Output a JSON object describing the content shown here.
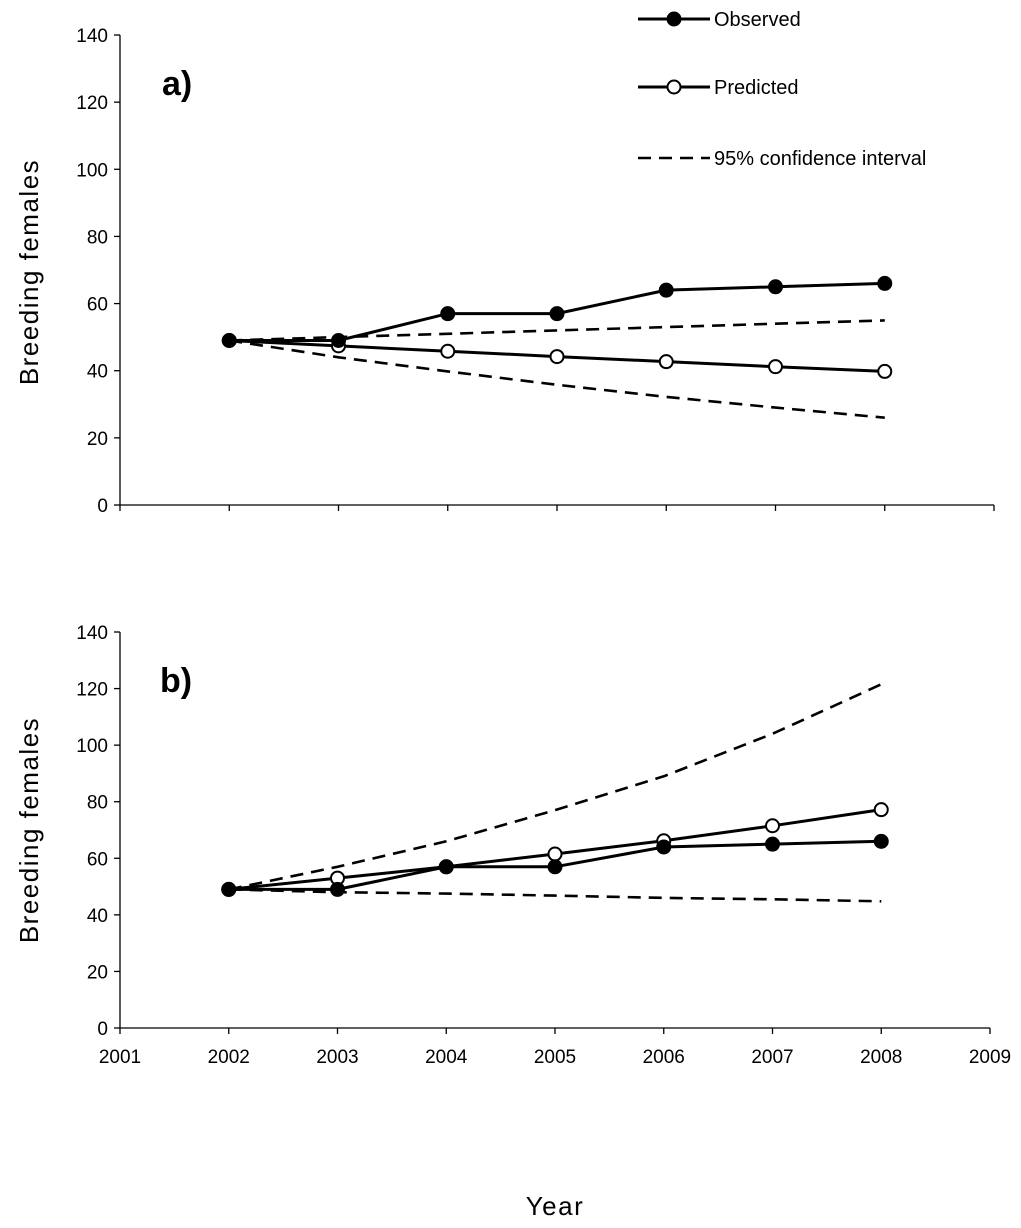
{
  "chart_data": [
    {
      "type": "line",
      "panel_label": "a)",
      "xlabel": "",
      "ylabel": "Breeding females",
      "ylim": [
        0,
        140
      ],
      "yticks": [
        0,
        20,
        40,
        60,
        80,
        100,
        120,
        140
      ],
      "xlim": [
        2001,
        2009
      ],
      "show_x_tick_labels": false,
      "grid": false,
      "legend": {
        "placement": "top-right",
        "entries": [
          "Observed",
          "Predicted",
          "95% confidence interval"
        ]
      },
      "series": [
        {
          "name": "Observed",
          "style": "solid-filled-marker",
          "x": [
            2002,
            2003,
            2004,
            2005,
            2006,
            2007,
            2008
          ],
          "y": [
            49,
            49,
            57,
            57,
            64,
            65,
            66
          ]
        },
        {
          "name": "Predicted",
          "style": "solid-open-marker",
          "x": [
            2002,
            2003,
            2004,
            2005,
            2006,
            2007,
            2008
          ],
          "y": [
            49,
            47.4,
            45.8,
            44.2,
            42.7,
            41.2,
            39.8
          ]
        },
        {
          "name": "95% confidence interval",
          "style": "dashed",
          "x": [
            2002,
            2003,
            2004,
            2005,
            2006,
            2007,
            2008
          ],
          "y": [
            49,
            50,
            51,
            52,
            53,
            54,
            55
          ]
        },
        {
          "name": "95% confidence interval",
          "style": "dashed",
          "x": [
            2002,
            2003,
            2004,
            2005,
            2006,
            2007,
            2008
          ],
          "y": [
            49,
            44,
            39.8,
            35.8,
            32.2,
            29,
            26
          ]
        }
      ]
    },
    {
      "type": "line",
      "panel_label": "b)",
      "xlabel": "Year",
      "ylabel": "Breeding females",
      "ylim": [
        0,
        140
      ],
      "yticks": [
        0,
        20,
        40,
        60,
        80,
        100,
        120,
        140
      ],
      "xlim": [
        2001,
        2009
      ],
      "xticks": [
        "2001",
        "2002",
        "2003",
        "2004",
        "2005",
        "2006",
        "2007",
        "2008",
        "2009"
      ],
      "show_x_tick_labels": true,
      "grid": false,
      "series": [
        {
          "name": "Observed",
          "style": "solid-filled-marker",
          "x": [
            2002,
            2003,
            2004,
            2005,
            2006,
            2007,
            2008
          ],
          "y": [
            49,
            49,
            57,
            57,
            64,
            65,
            66
          ]
        },
        {
          "name": "Predicted",
          "style": "solid-open-marker",
          "x": [
            2002,
            2003,
            2004,
            2005,
            2006,
            2007,
            2008
          ],
          "y": [
            49,
            53,
            57,
            61.5,
            66.2,
            71.5,
            77.2
          ]
        },
        {
          "name": "95% confidence interval",
          "style": "dashed",
          "x": [
            2002,
            2003,
            2004,
            2005,
            2006,
            2007,
            2008
          ],
          "y": [
            49,
            57,
            66,
            77,
            89,
            104,
            121.5
          ]
        },
        {
          "name": "95% confidence interval",
          "style": "dashed",
          "x": [
            2002,
            2003,
            2004,
            2005,
            2006,
            2007,
            2008
          ],
          "y": [
            49,
            48,
            47.5,
            46.8,
            46,
            45.5,
            44.8
          ]
        }
      ]
    }
  ]
}
